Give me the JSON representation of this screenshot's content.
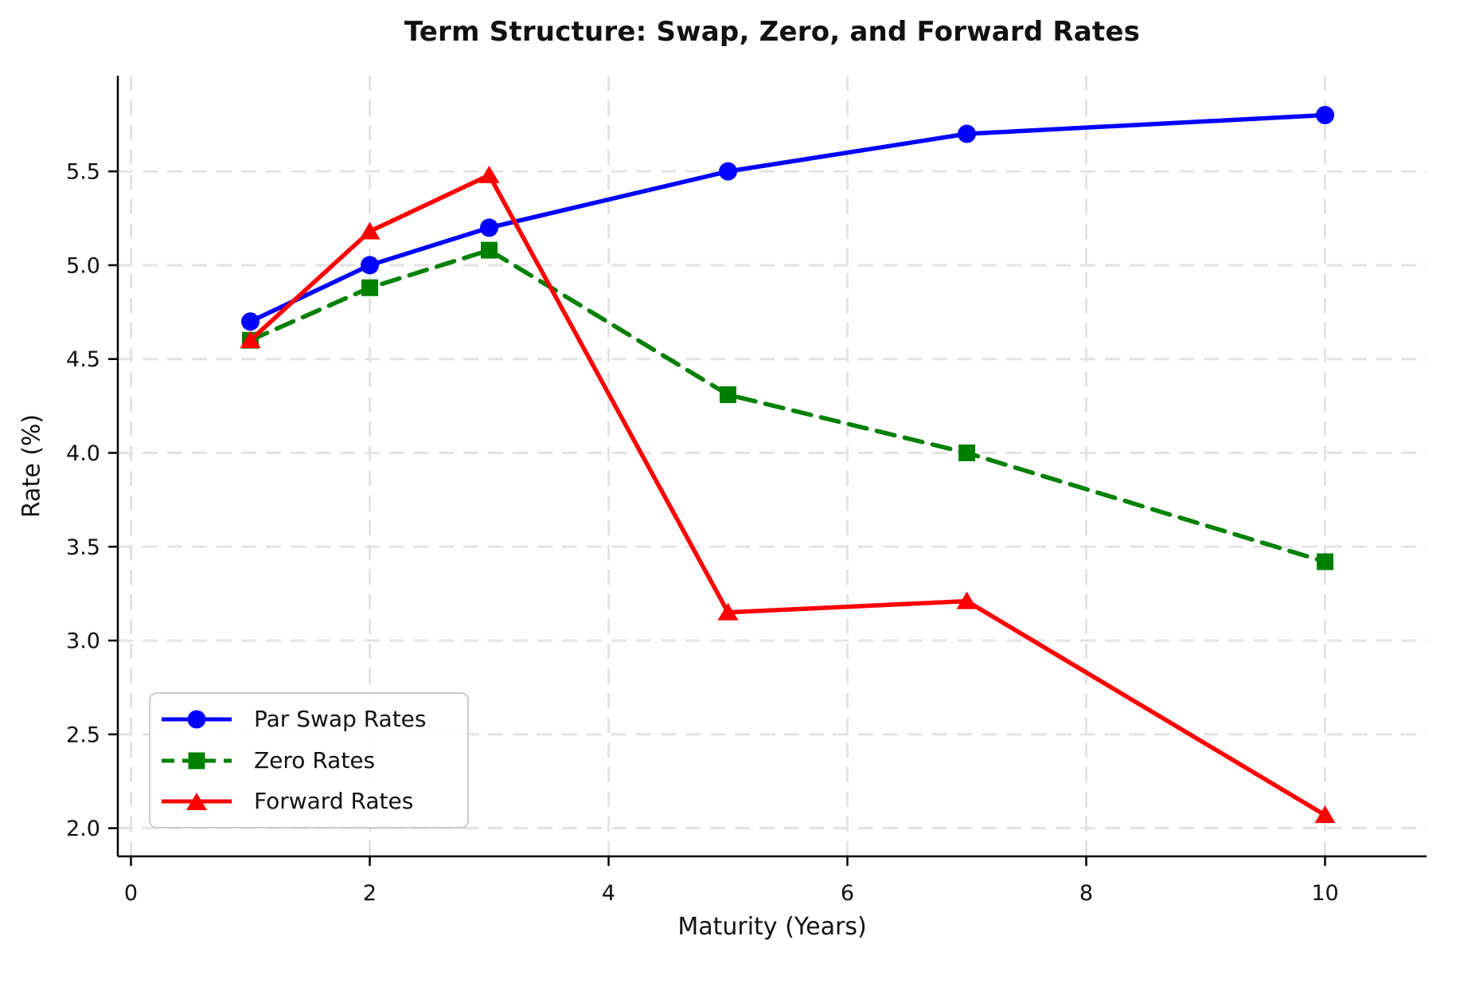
{
  "chart_data": {
    "type": "line",
    "title": "Term Structure: Swap, Zero, and Forward Rates",
    "xlabel": "Maturity (Years)",
    "ylabel": "Rate (%)",
    "x": [
      1,
      2,
      3,
      5,
      7,
      10
    ],
    "series": [
      {
        "name": "Par Swap Rates",
        "values": [
          4.7,
          5.0,
          5.2,
          5.5,
          5.7,
          5.8
        ],
        "color": "#0000ff",
        "marker": "circle",
        "line_style": "solid"
      },
      {
        "name": "Zero Rates",
        "values": [
          4.6,
          4.88,
          5.08,
          4.31,
          4.0,
          3.42
        ],
        "color": "#008000",
        "marker": "square",
        "line_style": "dashed"
      },
      {
        "name": "Forward Rates",
        "values": [
          4.6,
          5.18,
          5.48,
          3.15,
          3.21,
          2.07
        ],
        "color": "#ff0000",
        "marker": "triangle",
        "line_style": "solid"
      }
    ],
    "xlim": [
      -0.11,
      10.85
    ],
    "ylim": [
      1.85,
      6.01
    ],
    "xticks": [
      0,
      2,
      4,
      6,
      8,
      10
    ],
    "xtick_labels": [
      "0",
      "2",
      "4",
      "6",
      "8",
      "10"
    ],
    "yticks": [
      2.0,
      2.5,
      3.0,
      3.5,
      4.0,
      4.5,
      5.0,
      5.5
    ],
    "ytick_labels": [
      "2.0",
      "2.5",
      "3.0",
      "3.5",
      "4.0",
      "4.5",
      "5.0",
      "5.5"
    ],
    "grid": true,
    "grid_color": "#e3e3e3",
    "spine_color": "#000000",
    "legend_position": "lower-left"
  }
}
